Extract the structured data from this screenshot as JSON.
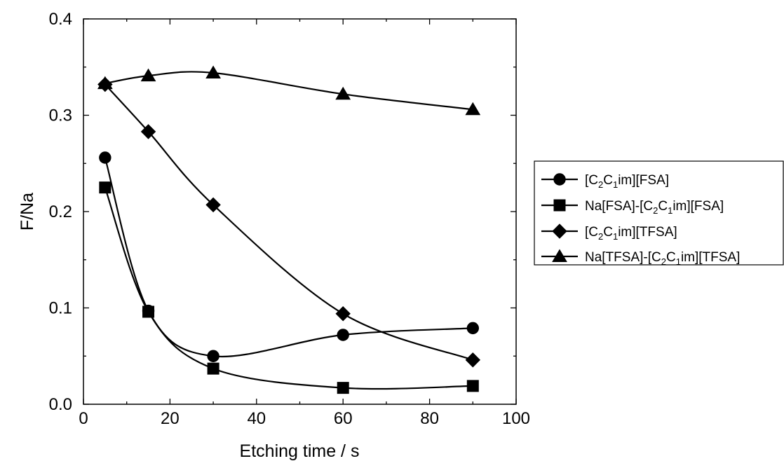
{
  "chart_data": {
    "type": "line",
    "xlabel": "Etching time / s",
    "ylabel": "F/Na",
    "xlim": [
      0,
      100
    ],
    "ylim": [
      0.0,
      0.4
    ],
    "xticks": [
      0,
      20,
      40,
      60,
      80,
      100
    ],
    "xtick_labels": [
      "0",
      "20",
      "40",
      "60",
      "80",
      "100"
    ],
    "yticks": [
      0.0,
      0.1,
      0.2,
      0.3,
      0.4
    ],
    "ytick_labels": [
      "0.0",
      "0.1",
      "0.2",
      "0.3",
      "0.4"
    ],
    "x_minor_step": 10,
    "y_minor_step": 0.05,
    "grid": false,
    "legend_position": "outside right",
    "series": [
      {
        "key": "c2c1im-fsa",
        "legend_parts": [
          [
            "[C",
            false
          ],
          [
            "2",
            true
          ],
          [
            "C",
            false
          ],
          [
            "1",
            true
          ],
          [
            "im][FSA]",
            false
          ]
        ],
        "marker": "circle",
        "color": "#000000",
        "x": [
          5,
          15,
          30,
          60,
          90
        ],
        "y": [
          0.256,
          0.097,
          0.05,
          0.072,
          0.079
        ]
      },
      {
        "key": "na-fsa-c2c1im-fsa",
        "legend_parts": [
          [
            "Na[FSA]-[C",
            false
          ],
          [
            "2",
            true
          ],
          [
            "C",
            false
          ],
          [
            "1",
            true
          ],
          [
            "im][FSA]",
            false
          ]
        ],
        "marker": "square",
        "color": "#000000",
        "x": [
          5,
          15,
          30,
          60,
          90
        ],
        "y": [
          0.225,
          0.096,
          0.037,
          0.017,
          0.019
        ]
      },
      {
        "key": "c2c1im-tfsa",
        "legend_parts": [
          [
            "[C",
            false
          ],
          [
            "2",
            true
          ],
          [
            "C",
            false
          ],
          [
            "1",
            true
          ],
          [
            "im][TFSA]",
            false
          ]
        ],
        "marker": "diamond",
        "color": "#000000",
        "x": [
          5,
          15,
          30,
          60,
          90
        ],
        "y": [
          0.332,
          0.283,
          0.207,
          0.094,
          0.046
        ]
      },
      {
        "key": "na-tfsa-c2c1im-tfsa",
        "legend_parts": [
          [
            "Na[TFSA]-[C",
            false
          ],
          [
            "2",
            true
          ],
          [
            "C",
            false
          ],
          [
            "1",
            true
          ],
          [
            "im][TFSA]",
            false
          ]
        ],
        "marker": "triangle",
        "color": "#000000",
        "x": [
          5,
          15,
          30,
          60,
          90
        ],
        "y": [
          0.333,
          0.341,
          0.344,
          0.322,
          0.306
        ]
      }
    ]
  }
}
